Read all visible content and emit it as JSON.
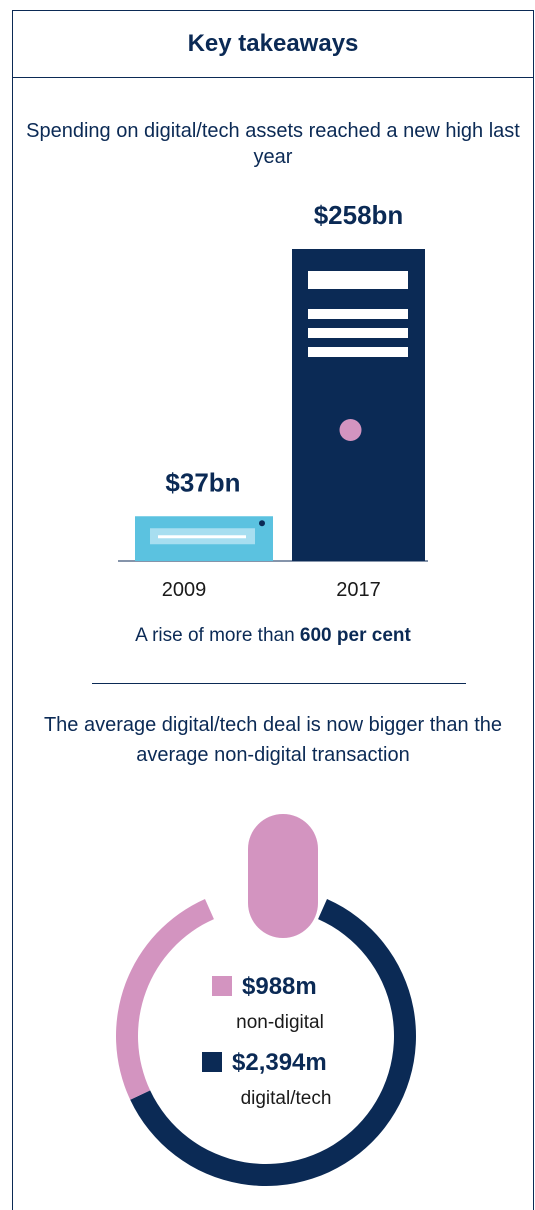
{
  "header": {
    "title": "Key takeaways"
  },
  "section1": {
    "subtitle": "Spending on digital/tech assets reached a new high last year",
    "rise_prefix": "A rise of more than",
    "rise_bold": "600 per cent"
  },
  "section2": {
    "subtitle": "The average digital/tech deal is now bigger than the average non-digital transaction"
  },
  "colors": {
    "navy": "#0b2a55",
    "light_blue": "#5bc2e0",
    "pink": "#d394c0"
  },
  "chart_data": [
    {
      "type": "bar",
      "categories": [
        "2009",
        "2017"
      ],
      "values": [
        37,
        258
      ],
      "value_labels": [
        "$37bn",
        "$258bn"
      ],
      "colors": [
        "#5bc2e0",
        "#0b2a55"
      ],
      "unit": "$bn"
    },
    {
      "type": "pie",
      "labels": [
        "non-digital",
        "digital/tech"
      ],
      "values": [
        988,
        2394
      ],
      "value_labels": [
        "$988m",
        "$2,394m"
      ],
      "colors": [
        "#d394c0",
        "#0b2a55"
      ]
    }
  ]
}
